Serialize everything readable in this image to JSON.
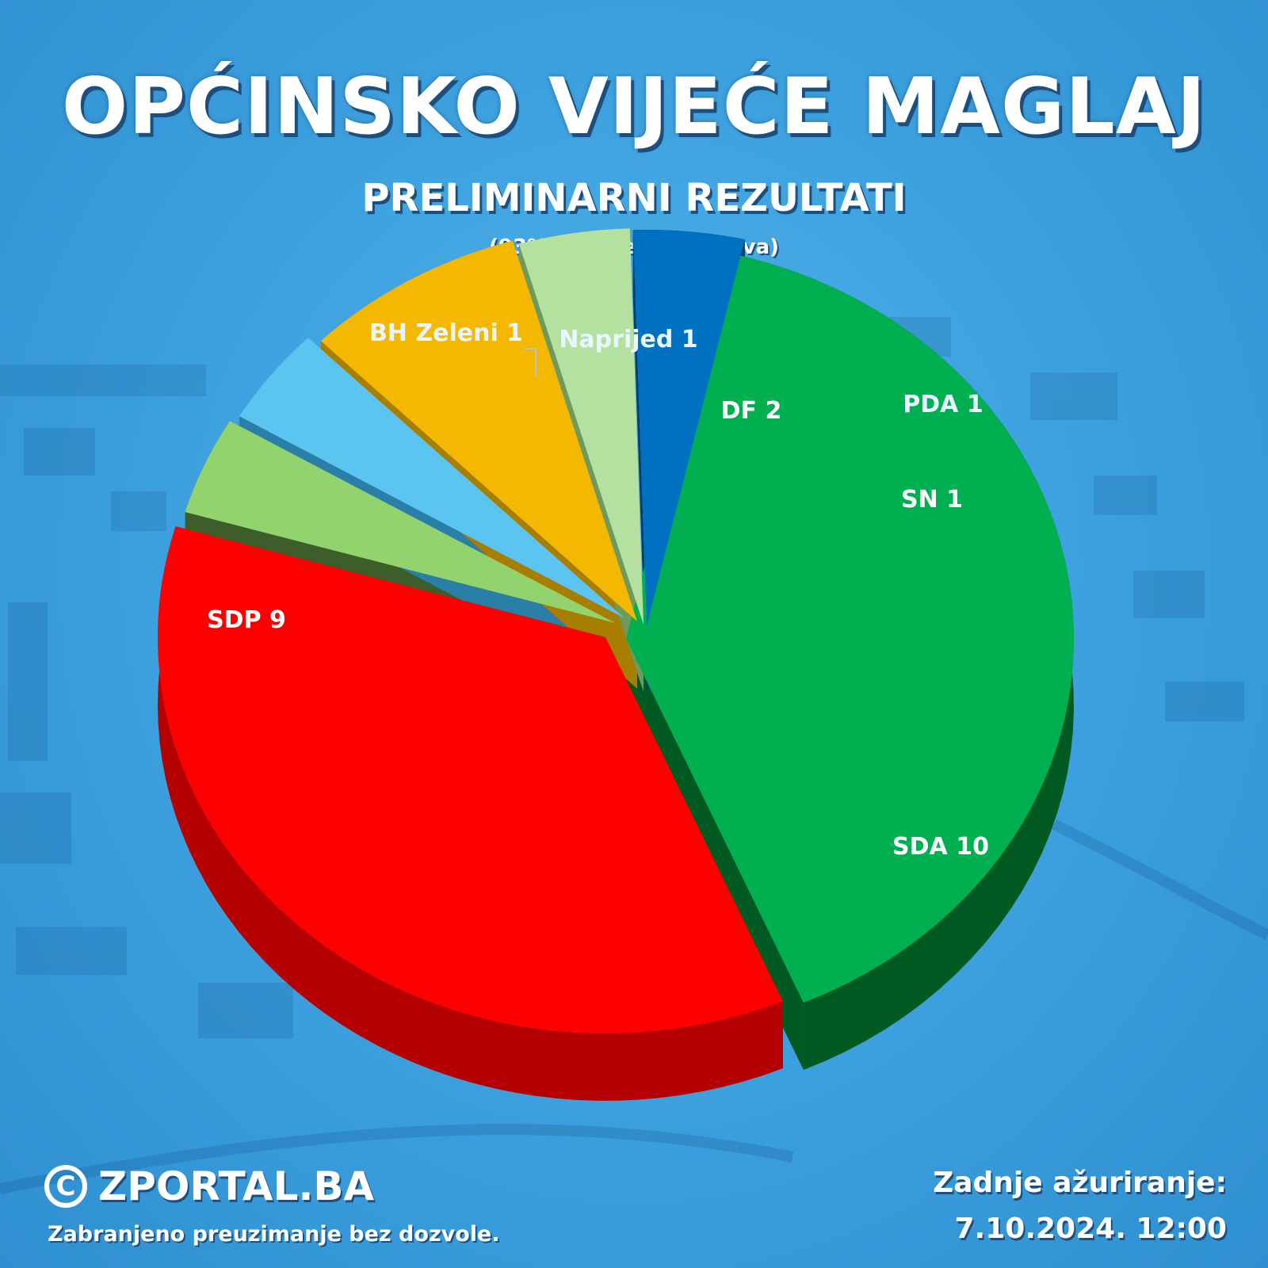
{
  "header": {
    "title": "OPĆINSKO VIJEĆE MAGLAJ",
    "subtitle": "PRELIMINARNI REZULTATI",
    "note": "(93% obrađenih glasova)"
  },
  "chart_data": {
    "type": "pie",
    "title": "OPĆINSKO VIJEĆE MAGLAJ",
    "subtitle": "PRELIMINARNI REZULTATI",
    "style": "3d-exploded",
    "legend": "none",
    "slices": [
      {
        "name": "SDA",
        "value": 10,
        "label": "SDA 10",
        "color": "#00b050",
        "side": "#005a22"
      },
      {
        "name": "SDP",
        "value": 9,
        "label": "SDP 9",
        "color": "#ff0000",
        "side": "#b40000"
      },
      {
        "name": "BH Zeleni",
        "value": 1,
        "label": "BH Zeleni 1",
        "color": "#92d36e",
        "side": "#3d5e2a"
      },
      {
        "name": "Naprijed",
        "value": 1,
        "label": "Naprijed 1",
        "color": "#5bc4f1",
        "side": "#2a7fa6"
      },
      {
        "name": "DF",
        "value": 2,
        "label": "DF 2",
        "color": "#f5b800",
        "side": "#a87e00"
      },
      {
        "name": "PDA",
        "value": 1,
        "label": "PDA 1",
        "color": "#b4e0a0",
        "side": "#6f9a5e"
      },
      {
        "name": "SN",
        "value": 1,
        "label": "SN 1",
        "color": "#0070c0",
        "side": "#003e6e"
      }
    ]
  },
  "footer": {
    "brand_icon": "copyright-icon",
    "brand_symbol": "C",
    "brand": "ZPORTAL.BA",
    "legal": "Zabranjeno preuzimanje bez dozvole.",
    "updated_label": "Zadnje ažuriranje:",
    "updated_date": "7.10.2024. 12:00"
  }
}
